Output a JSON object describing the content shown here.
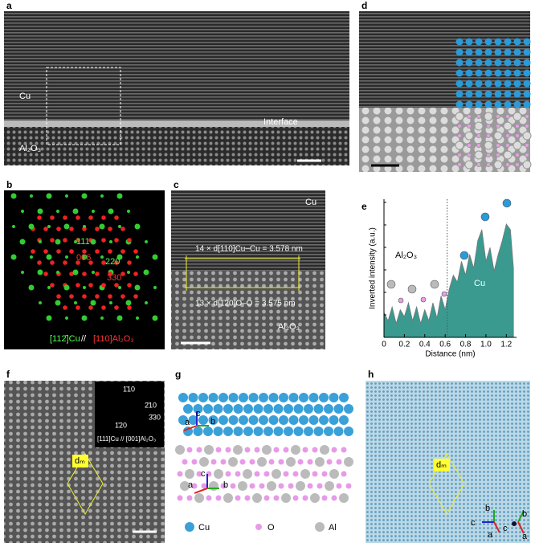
{
  "panel_letters": [
    "a",
    "b",
    "c",
    "d",
    "e",
    "f",
    "g",
    "h"
  ],
  "panel_a": {
    "cu": "Cu",
    "interface": "Interface",
    "al2o3": "Al₂O₃"
  },
  "panel_b": {
    "spots": [
      "111",
      "006",
      "220",
      "330"
    ],
    "zone_cu": "[112̄]Cu",
    "separator": "//",
    "zone_al": "[110]Al₂O₃"
  },
  "panel_c": {
    "cu": "Cu",
    "top_spacing": "14 × d[110]Cu–Cu = 3.578 nm",
    "bottom_spacing": "13 × d[1̄20]O–O = 3.575 nm",
    "al2o3": "Al₂O₃"
  },
  "chart_data": {
    "type": "area",
    "color": "#3a9a90",
    "xlabel": "Distance (nm)",
    "ylabel": "Inverted intensity (a.u.)",
    "labels": [
      "Al₂O₃",
      "Cu"
    ],
    "x": [
      0,
      0.04,
      0.08,
      0.12,
      0.16,
      0.2,
      0.24,
      0.28,
      0.32,
      0.36,
      0.4,
      0.44,
      0.48,
      0.52,
      0.56,
      0.6,
      0.64,
      0.68,
      0.72,
      0.76,
      0.8,
      0.84,
      0.88,
      0.92,
      0.96,
      1.0,
      1.04,
      1.08,
      1.12,
      1.16,
      1.2,
      1.24,
      1.27
    ],
    "values": [
      0.18,
      0.12,
      0.22,
      0.1,
      0.2,
      0.15,
      0.25,
      0.12,
      0.22,
      0.1,
      0.2,
      0.12,
      0.25,
      0.14,
      0.3,
      0.2,
      0.35,
      0.45,
      0.4,
      0.55,
      0.45,
      0.6,
      0.5,
      0.7,
      0.78,
      0.55,
      0.65,
      0.48,
      0.6,
      0.7,
      0.82,
      0.78,
      0.5
    ],
    "divider_x": 0.62,
    "xlim": [
      0,
      1.3
    ],
    "ylim": [
      0,
      1
    ],
    "xticks": [
      0,
      {
        "value": 0.2,
        "label": "0.2"
      },
      {
        "value": 0.4,
        "label": "0.4"
      },
      {
        "value": 0.6,
        "label": "0.6"
      },
      {
        "value": 0.8,
        "label": "0.8"
      },
      {
        "value": 1.0,
        "label": "1.0"
      },
      {
        "value": 1.2,
        "label": "1.2"
      }
    ]
  },
  "panel_f": {
    "inset_spots": [
      "1̄10",
      "2̄10",
      "3̄30",
      "1̄20"
    ],
    "zone": "[111]Cu // [001]Al₂O₃",
    "dm": "dₘ"
  },
  "panel_g": {
    "axes_top": [
      "a",
      "c",
      "b"
    ],
    "axes_bottom": [
      "c",
      "a",
      "b"
    ],
    "legend": [
      "Cu",
      "O",
      "Al"
    ]
  },
  "panel_h": {
    "dm": "dₘ",
    "axes": [
      "b",
      "c",
      "a",
      "b",
      "c",
      "a"
    ]
  }
}
